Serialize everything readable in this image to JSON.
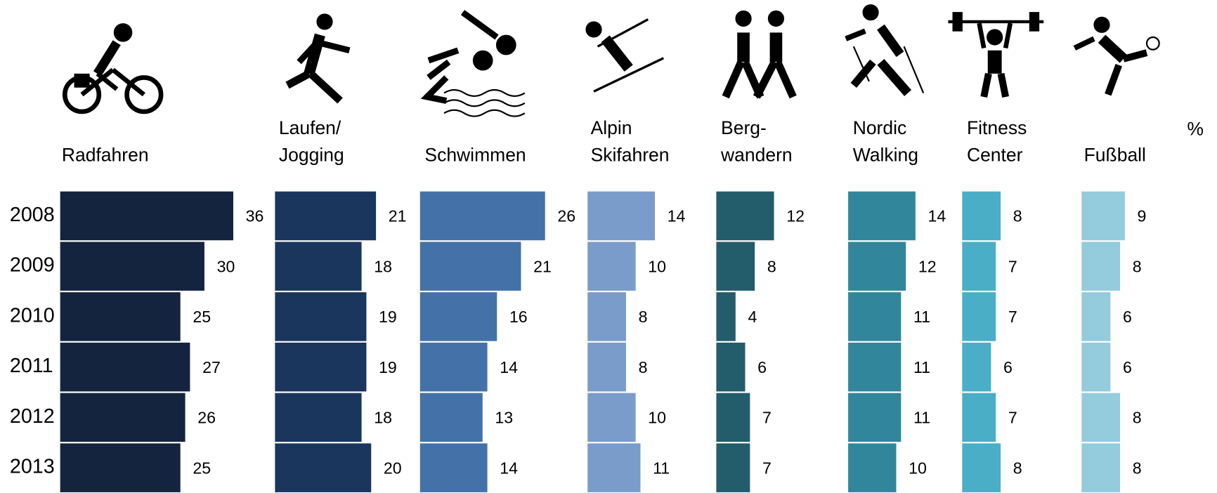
{
  "chart_data": {
    "type": "bar",
    "orientation": "horizontal",
    "unit": "%",
    "categories": [
      "2008",
      "2009",
      "2010",
      "2011",
      "2012",
      "2013"
    ],
    "series": [
      {
        "name": "Radfahren",
        "color": "#14243f",
        "values": [
          36,
          30,
          25,
          27,
          26,
          25
        ]
      },
      {
        "name": "Laufen/\nJogging",
        "color": "#1a365d",
        "values": [
          21,
          18,
          19,
          19,
          18,
          20
        ]
      },
      {
        "name": "Schwimmen",
        "color": "#4472a8",
        "values": [
          26,
          21,
          16,
          14,
          13,
          14
        ]
      },
      {
        "name": "Alpin\nSkifahren",
        "color": "#7a9ccb",
        "values": [
          14,
          10,
          8,
          8,
          10,
          11
        ]
      },
      {
        "name": "Berg-\nwandern",
        "color": "#235c6a",
        "values": [
          12,
          8,
          4,
          6,
          7,
          7
        ]
      },
      {
        "name": "Nordic\nWalking",
        "color": "#32869b",
        "values": [
          14,
          12,
          11,
          11,
          11,
          10
        ]
      },
      {
        "name": "Fitness\nCenter",
        "color": "#4aaec6",
        "values": [
          8,
          7,
          7,
          6,
          7,
          8
        ]
      },
      {
        "name": "Fußball",
        "color": "#94cbdd",
        "values": [
          9,
          8,
          6,
          6,
          8,
          8
        ]
      }
    ]
  }
}
